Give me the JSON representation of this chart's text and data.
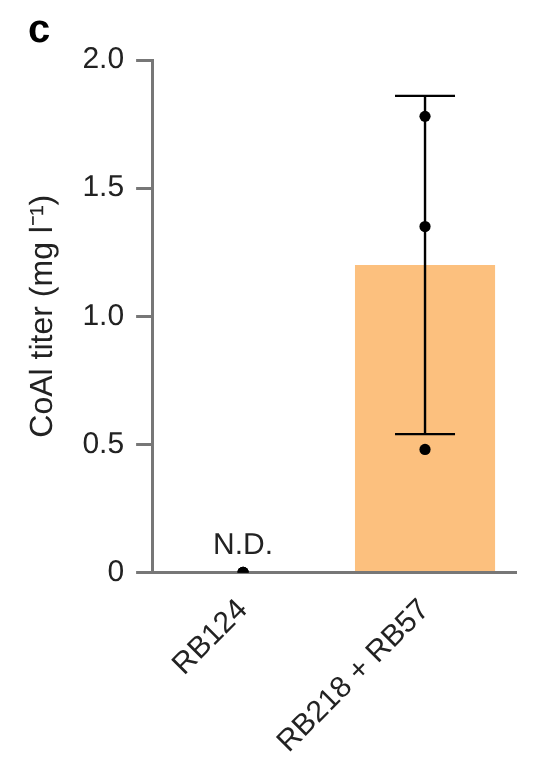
{
  "chart_data": {
    "type": "bar",
    "title": "c",
    "ylabel": "CoAl titer (mg l⁻¹)",
    "categories": [
      "RB124",
      "RB218 + RB57"
    ],
    "series": [
      {
        "color": "#fcc07e",
        "values": [
          0,
          1.2
        ],
        "errors": [
          null,
          0.66
        ]
      },
      {
        "type": "scatter",
        "color": "#000000",
        "x": [
          "RB124",
          "RB124",
          "RB124",
          "RB218 + RB57",
          "RB218 + RB57",
          "RB218 + RB57"
        ],
        "values": [
          0,
          0,
          0,
          1.78,
          1.35,
          0.48
        ]
      }
    ],
    "ylim": [
      0,
      2
    ],
    "yticks": [
      0,
      0.5,
      {
        "value": 1,
        "label": "1.0"
      },
      1.5,
      {
        "value": 2,
        "label": "2.0"
      }
    ],
    "annotations": [
      {
        "text": "N.D.",
        "x": "RB124",
        "y": 0
      }
    ],
    "grid": false,
    "legend": false,
    "marker": "circle"
  }
}
